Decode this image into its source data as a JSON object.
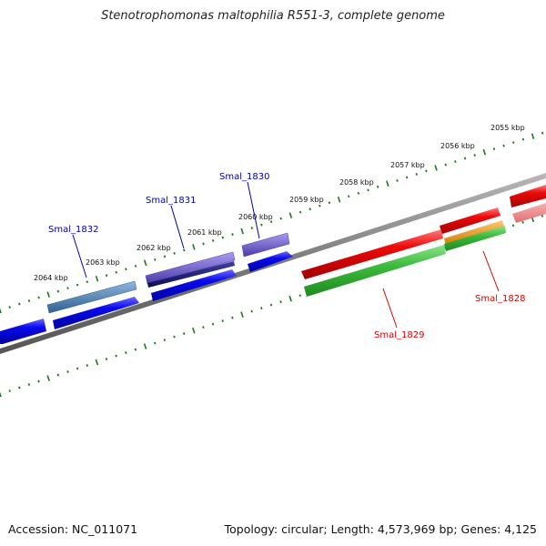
{
  "title": "Stenotrophomonas maltophilia R551-3, complete genome",
  "footer": {
    "accession": "Accession: NC_011071",
    "topology": "Topology: circular; Length: 4,573,969 bp; Genes: 4,125"
  },
  "scale_labels": [
    "2064 kbp",
    "2063 kbp",
    "2062 kbp",
    "2061 kbp",
    "2060 kbp",
    "2059 kbp",
    "2058 kbp",
    "2057 kbp",
    "2056 kbp",
    "2055 kbp"
  ],
  "gene_labels": [
    {
      "name": "Smal_1832",
      "color": "#0000b0"
    },
    {
      "name": "Smal_1831",
      "color": "#0000b0"
    },
    {
      "name": "Smal_1830",
      "color": "#0000b0"
    },
    {
      "name": "Smal_1829",
      "color": "#dd0000"
    },
    {
      "name": "Smal_1828",
      "color": "#dd0000"
    }
  ],
  "colors": {
    "backbone": "#808080",
    "tick": "#1a7a1a",
    "blue": "#0a0aee",
    "red": "#ee0a0a",
    "green": "#3dbb3d",
    "orange": "#ee9a10",
    "steel": "#4f84b8",
    "purple": "#6c5cd0",
    "navy": "#1a1a78"
  }
}
